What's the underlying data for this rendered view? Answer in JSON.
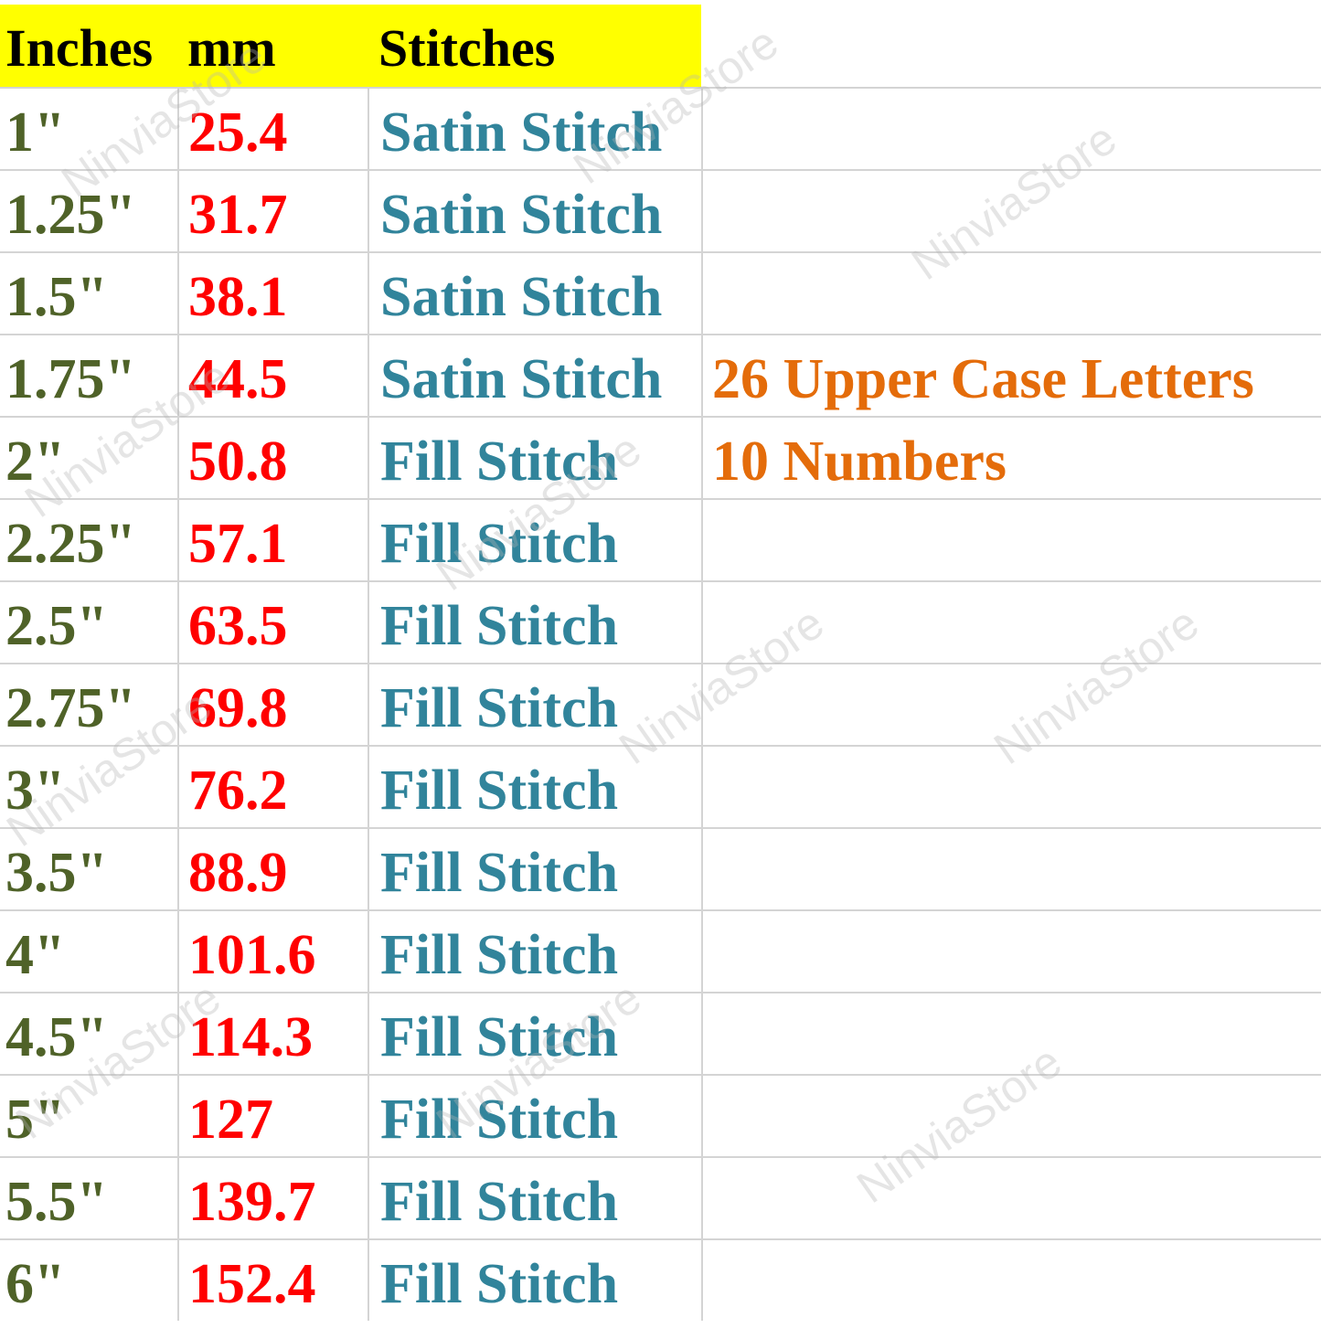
{
  "header": {
    "inches": "Inches",
    "mm": "mm",
    "stitches": "Stitches"
  },
  "colors": {
    "header_bg": "#ffff00",
    "inches": "#4f6228",
    "mm": "#ff0000",
    "stitches": "#31849b",
    "notes": "#e46c0a"
  },
  "rows": [
    {
      "inches": "1\"",
      "mm": "25.4",
      "stitch": "Satin Stitch",
      "note": ""
    },
    {
      "inches": "1.25\"",
      "mm": "31.7",
      "stitch": "Satin Stitch",
      "note": ""
    },
    {
      "inches": "1.5\"",
      "mm": "38.1",
      "stitch": "Satin Stitch",
      "note": ""
    },
    {
      "inches": "1.75\"",
      "mm": "44.5",
      "stitch": "Satin Stitch",
      "note": "26 Upper Case Letters"
    },
    {
      "inches": "2\"",
      "mm": "50.8",
      "stitch": "Fill Stitch",
      "note": "10 Numbers"
    },
    {
      "inches": "2.25\"",
      "mm": "57.1",
      "stitch": "Fill Stitch",
      "note": ""
    },
    {
      "inches": "2.5\"",
      "mm": "63.5",
      "stitch": "Fill Stitch",
      "note": ""
    },
    {
      "inches": "2.75\"",
      "mm": "69.8",
      "stitch": "Fill Stitch",
      "note": ""
    },
    {
      "inches": "3\"",
      "mm": "76.2",
      "stitch": "Fill Stitch",
      "note": ""
    },
    {
      "inches": "3.5\"",
      "mm": "88.9",
      "stitch": "Fill Stitch",
      "note": ""
    },
    {
      "inches": "4\"",
      "mm": "101.6",
      "stitch": "Fill Stitch",
      "note": ""
    },
    {
      "inches": "4.5\"",
      "mm": "114.3",
      "stitch": "Fill Stitch",
      "note": ""
    },
    {
      "inches": "5\"",
      "mm": "127",
      "stitch": "Fill Stitch",
      "note": ""
    },
    {
      "inches": "5.5\"",
      "mm": "139.7",
      "stitch": "Fill Stitch",
      "note": ""
    },
    {
      "inches": "6\"",
      "mm": "152.4",
      "stitch": "Fill Stitch",
      "note": ""
    }
  ],
  "watermark": "NinviaStore"
}
